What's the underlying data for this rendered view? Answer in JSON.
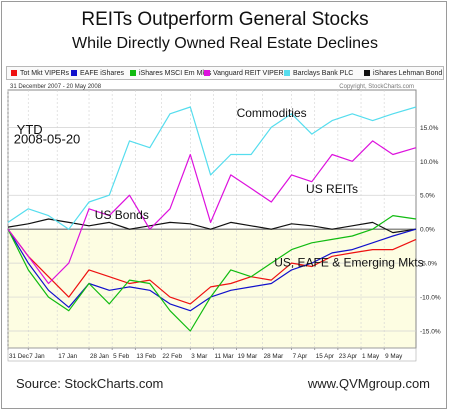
{
  "title": "REITs Outperform General Stocks",
  "subtitle": "While Directly Owned Real Estate Declines",
  "range_label": "31 December 2007 - 20 May 2008",
  "copyright": "Copyright, StockCharts.com",
  "footer_left": "Source: StockCharts.com",
  "footer_right": "www.QVMgroup.com",
  "colors": {
    "tot_mkt": "#ee1111",
    "eafe": "#1111cc",
    "em": "#11bb11",
    "reit": "#dd11dd",
    "commodities": "#55ddee",
    "bonds": "#111111",
    "band": "#fdfde2",
    "grid": "#d2d2d2"
  },
  "chart_data": {
    "type": "line",
    "title": "REITs Outperform General Stocks",
    "subtitle": "While Directly Owned Real Estate Declines",
    "xlabel": "",
    "ylabel": "",
    "grid": true,
    "legend_position": "top",
    "x_dates": [
      "2007-12-31",
      "2008-01-07",
      "2008-01-14",
      "2008-01-21",
      "2008-01-28",
      "2008-02-04",
      "2008-02-11",
      "2008-02-18",
      "2008-02-25",
      "2008-03-03",
      "2008-03-10",
      "2008-03-17",
      "2008-03-24",
      "2008-03-31",
      "2008-04-07",
      "2008-04-14",
      "2008-04-21",
      "2008-04-28",
      "2008-05-05",
      "2008-05-12",
      "2008-05-20"
    ],
    "x_tick_labels": [
      "31 Dec",
      "7 Jan",
      "17 Jan",
      "28 Jan",
      "5 Feb",
      "13 Feb",
      "22 Feb",
      "3 Mar",
      "11 Mar",
      "19 Mar",
      "28 Mar",
      "7 Apr",
      "15 Apr",
      "23 Apr",
      "1 May",
      "9 May"
    ],
    "x_tick_dates": [
      "2007-12-31",
      "2008-01-07",
      "2008-01-17",
      "2008-01-28",
      "2008-02-05",
      "2008-02-13",
      "2008-02-22",
      "2008-03-03",
      "2008-03-11",
      "2008-03-19",
      "2008-03-28",
      "2008-04-07",
      "2008-04-15",
      "2008-04-23",
      "2008-05-01",
      "2008-05-09"
    ],
    "y_ticks": [
      -15,
      -10,
      -5,
      0,
      5,
      10,
      15
    ],
    "y_tick_labels": [
      "-15.0%",
      "-10.0%",
      "-5.0%",
      "0.0%",
      "5.0%",
      "10.0%",
      "15.0%"
    ],
    "ylim": [
      -17.5,
      20.5
    ],
    "series": [
      {
        "name": "Tot Mkt VIPERs",
        "key": "tot_mkt",
        "values": [
          0,
          -4,
          -7,
          -10,
          -6,
          -7,
          -8,
          -7.5,
          -10,
          -11,
          -8.5,
          -8,
          -7,
          -7.5,
          -5,
          -5.5,
          -4,
          -3.5,
          -3,
          -3,
          -1.5
        ]
      },
      {
        "name": "EAFE iShares",
        "key": "eafe",
        "values": [
          0,
          -5,
          -9,
          -11.5,
          -8,
          -9,
          -8.5,
          -9,
          -11,
          -12,
          -10,
          -9,
          -8.5,
          -8,
          -6,
          -5,
          -3.5,
          -3,
          -2,
          -1,
          0
        ]
      },
      {
        "name": "iShares MSCI Em Mkts",
        "key": "em",
        "values": [
          0,
          -6,
          -10,
          -12,
          -8,
          -11,
          -7.5,
          -8,
          -12,
          -15,
          -10,
          -6,
          -7,
          -5,
          -3,
          -2,
          -1.5,
          -1,
          0,
          2,
          1.5
        ]
      },
      {
        "name": "Vanguard REIT VIPER",
        "key": "reit",
        "values": [
          0,
          -4,
          -8,
          -5,
          3,
          2,
          5,
          0,
          3,
          11,
          1,
          8,
          6,
          4,
          8,
          7,
          11,
          10,
          13,
          11,
          12
        ]
      },
      {
        "name": "Barclays Bank PLC",
        "key": "commodities",
        "values": [
          1,
          3,
          2,
          0,
          4,
          5,
          13,
          12,
          17,
          18,
          8,
          11,
          11,
          15,
          17,
          14,
          16,
          17,
          16,
          17,
          18
        ]
      },
      {
        "name": "iShares Lehman Bond",
        "key": "bonds",
        "values": [
          0.3,
          0.8,
          1.5,
          1,
          0.5,
          1,
          0,
          0.5,
          1,
          0.8,
          0,
          1,
          0.5,
          0,
          0.8,
          0.5,
          0,
          0.5,
          1,
          -0.5,
          0
        ]
      }
    ],
    "annotations": [
      {
        "text": "YTD",
        "x": "2008-01-03",
        "y": 14
      },
      {
        "text": "2008-05-20",
        "x": "2008-01-02",
        "y": 12.6
      },
      {
        "text": "Commodities",
        "x": "2008-03-19",
        "y": 16.5
      },
      {
        "text": "US REITs",
        "x": "2008-04-12",
        "y": 5.3
      },
      {
        "text": "US Bonds",
        "x": "2008-01-30",
        "y": 1.5
      },
      {
        "text": "US, EAFE & Emerging Mkts",
        "x": "2008-04-01",
        "y": -5.5
      }
    ]
  }
}
